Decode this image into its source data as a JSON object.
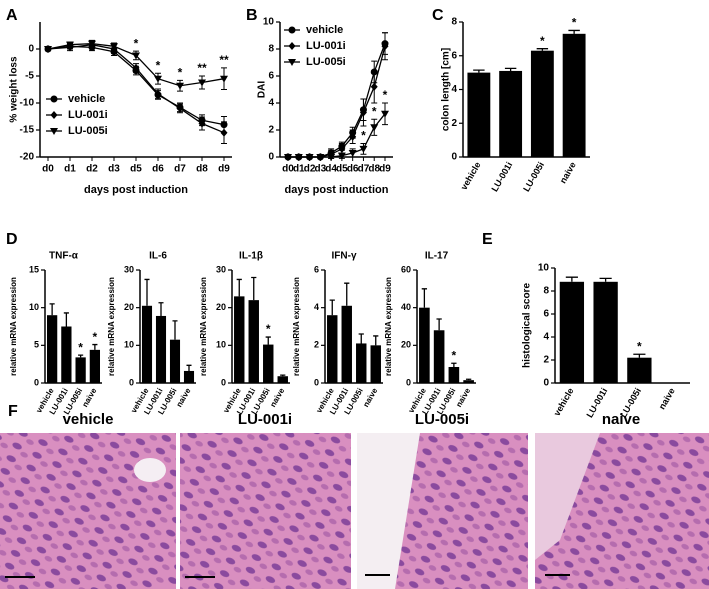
{
  "chart_data": [
    {
      "type": "line",
      "panel": "A",
      "ylabel": "% weight loss",
      "xlabel": "days post induction",
      "legend": "lower left",
      "categories": [
        "d0",
        "d1",
        "d2",
        "d3",
        "d5",
        "d6",
        "d7",
        "d8",
        "d9"
      ],
      "ylim": [
        -20,
        5
      ],
      "yticks": [
        -20,
        -15,
        -10,
        -5,
        0
      ],
      "series": [
        {
          "name": "vehicle",
          "color": "#000000",
          "marker": "circle",
          "values": [
            0,
            0.5,
            0.3,
            -0.5,
            -4,
            -8.5,
            -10.8,
            -13.2,
            -14
          ],
          "errors": [
            0.3,
            0.5,
            0.6,
            0.7,
            0.8,
            0.8,
            0.8,
            1,
            1.5
          ],
          "significance": [
            null,
            null,
            null,
            null,
            null,
            null,
            null,
            null,
            null
          ]
        },
        {
          "name": "LU-001i",
          "color": "#000000",
          "marker": "diamond",
          "values": [
            0,
            0.3,
            0.8,
            0,
            -3.5,
            -8.3,
            -11,
            -13.8,
            -15.5
          ],
          "errors": [
            0.3,
            0.6,
            0.7,
            0.8,
            0.8,
            0.9,
            0.8,
            1.2,
            2
          ],
          "significance": [
            null,
            null,
            null,
            null,
            null,
            null,
            null,
            null,
            null
          ]
        },
        {
          "name": "LU-005i",
          "color": "#000000",
          "marker": "triangle",
          "values": [
            0,
            0.8,
            1,
            0.5,
            -1.2,
            -5.5,
            -6.8,
            -6.2,
            -5.5
          ],
          "errors": [
            0.3,
            0.5,
            0.6,
            0.6,
            0.8,
            1,
            1,
            1.2,
            2
          ],
          "significance": [
            null,
            null,
            null,
            null,
            "*",
            "*",
            "*",
            "**",
            "**"
          ]
        }
      ]
    },
    {
      "type": "line",
      "panel": "B",
      "ylabel": "DAI",
      "xlabel": "days post induction",
      "legend": "upper left",
      "categories": [
        "d0",
        "d1",
        "d2",
        "d3",
        "d4",
        "d5",
        "d6",
        "d7",
        "d8",
        "d9"
      ],
      "ylim": [
        0,
        10
      ],
      "yticks": [
        0,
        2,
        4,
        6,
        8,
        10
      ],
      "series": [
        {
          "name": "vehicle",
          "color": "#000000",
          "marker": "circle",
          "values": [
            0,
            0,
            0,
            0,
            0.3,
            0.8,
            1.8,
            3.5,
            6.3,
            8.4
          ],
          "errors": [
            0,
            0,
            0,
            0,
            0.3,
            0.3,
            0.4,
            0.8,
            0.8,
            0.8
          ],
          "significance": [
            null,
            null,
            null,
            null,
            null,
            null,
            null,
            null,
            null,
            null
          ]
        },
        {
          "name": "LU-001i",
          "color": "#000000",
          "marker": "diamond",
          "values": [
            0,
            0,
            0,
            0,
            0.2,
            0.6,
            1.5,
            3.3,
            5.2,
            8.2
          ],
          "errors": [
            0,
            0,
            0,
            0,
            0.3,
            0.4,
            0.5,
            1,
            1.2,
            1
          ]
        },
        {
          "name": "LU-005i",
          "color": "#000000",
          "marker": "triangle",
          "values": [
            0,
            0,
            0,
            0,
            0,
            0.1,
            0.3,
            0.6,
            2.2,
            3.2
          ],
          "errors": [
            0,
            0,
            0,
            0,
            0.1,
            0.2,
            0.3,
            0.4,
            0.6,
            0.8
          ],
          "significance": [
            null,
            null,
            null,
            null,
            null,
            null,
            null,
            "*",
            "*",
            "*"
          ]
        }
      ]
    },
    {
      "type": "bar",
      "panel": "C",
      "ylabel": "colon length [cm]",
      "categories": [
        "vehicle",
        "LU-001i",
        "LU-005i",
        "naive"
      ],
      "ylim": [
        0,
        8
      ],
      "yticks": [
        0,
        2,
        4,
        6,
        8
      ],
      "color": "#000000",
      "values": [
        5.0,
        5.1,
        6.3,
        7.3
      ],
      "errors": [
        0.15,
        0.15,
        0.12,
        0.2
      ],
      "significance": [
        null,
        null,
        "*",
        "*"
      ]
    },
    {
      "type": "bar",
      "panel": "D",
      "title": "TNF-α",
      "ylabel": "relative mRNA expression",
      "categories": [
        "vehicle",
        "LU-001i",
        "LU-005i",
        "naive"
      ],
      "ylim": [
        0,
        15
      ],
      "yticks": [
        0,
        5,
        10,
        15
      ],
      "color": "#000000",
      "values": [
        9,
        7.5,
        3.4,
        4.4
      ],
      "errors": [
        1.5,
        1.8,
        0.3,
        0.7
      ],
      "significance": [
        null,
        null,
        "*",
        "*"
      ]
    },
    {
      "type": "bar",
      "title": "IL-6",
      "ylabel": "relative mRNA expression",
      "categories": [
        "vehicle",
        "LU-001i",
        "LU-005i",
        "naive"
      ],
      "ylim": [
        0,
        30
      ],
      "yticks": [
        0,
        10,
        20,
        30
      ],
      "color": "#000000",
      "values": [
        20.5,
        17.8,
        11.5,
        3.2
      ],
      "errors": [
        7,
        3.5,
        5,
        1.5
      ]
    },
    {
      "type": "bar",
      "title": "IL-1β",
      "ylabel": "relative mRNA expression",
      "categories": [
        "vehicle",
        "LU-001i",
        "LU-005i",
        "naive"
      ],
      "ylim": [
        0,
        30
      ],
      "yticks": [
        0,
        10,
        20,
        30
      ],
      "color": "#000000",
      "values": [
        23,
        22,
        10.2,
        1.8
      ],
      "errors": [
        4.5,
        6,
        2,
        0.3
      ],
      "significance": [
        null,
        null,
        "*",
        null
      ]
    },
    {
      "type": "bar",
      "title": "IFN-γ",
      "ylabel": "relative mRNA expression",
      "categories": [
        "vehicle",
        "LU-001i",
        "LU-005i",
        "naive"
      ],
      "ylim": [
        0,
        6
      ],
      "yticks": [
        0,
        2,
        4,
        6
      ],
      "color": "#000000",
      "values": [
        3.6,
        4.1,
        2.1,
        2.0
      ],
      "errors": [
        0.8,
        1.2,
        0.5,
        0.5
      ]
    },
    {
      "type": "bar",
      "title": "IL-17",
      "ylabel": "relative mRNA expression",
      "categories": [
        "vehicle",
        "LU-001i",
        "LU-005i",
        "naive"
      ],
      "ylim": [
        0,
        60
      ],
      "yticks": [
        0,
        20,
        40,
        60
      ],
      "color": "#000000",
      "values": [
        40,
        28,
        8.5,
        1.5
      ],
      "errors": [
        10,
        6,
        2,
        0.5
      ],
      "significance": [
        null,
        null,
        "*",
        null
      ]
    },
    {
      "type": "bar",
      "panel": "E",
      "ylabel": "histological score",
      "categories": [
        "vehicle",
        "LU-001i",
        "LU-005i",
        "naive"
      ],
      "ylim": [
        0,
        10
      ],
      "yticks": [
        0,
        2,
        4,
        6,
        8,
        10
      ],
      "color": "#000000",
      "values": [
        8.8,
        8.8,
        2.2,
        0
      ],
      "errors": [
        0.4,
        0.3,
        0.3,
        0
      ],
      "significance": [
        null,
        null,
        "*",
        null
      ]
    }
  ],
  "histology": {
    "panel": "F",
    "labels": [
      "vehicle",
      "LU-001i",
      "LU-005i",
      "naive"
    ]
  }
}
